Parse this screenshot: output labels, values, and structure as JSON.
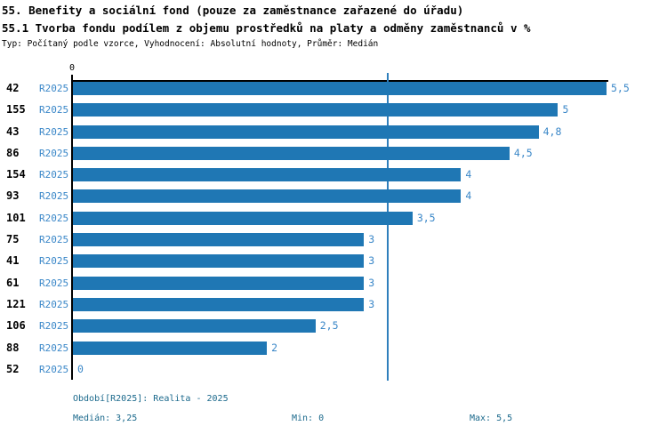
{
  "header": {
    "title_line1": "55. Benefity a sociální fond (pouze za zaměstnance zařazené do úřadu)",
    "title_line2": "55.1 Tvorba fondu podílem z objemu prostředků na platy a odměny zaměstnanců v %",
    "meta": "Typ: Počítaný podle vzorce, Vyhodnocení: Absolutní hodnoty, Průměr: Medián"
  },
  "chart_data": {
    "type": "bar",
    "orientation": "horizontal",
    "title": "55.1 Tvorba fondu podílem z objemu prostředků na platy a odměny zaměstnanců v %",
    "categories": [
      "42",
      "155",
      "43",
      "86",
      "154",
      "93",
      "101",
      "75",
      "41",
      "61",
      "121",
      "106",
      "88",
      "52"
    ],
    "series": [
      {
        "name": "R2025",
        "values": [
          5.5,
          5,
          4.8,
          4.5,
          4,
          4,
          3.5,
          3,
          3,
          3,
          3,
          2.5,
          2,
          0
        ],
        "value_labels": [
          "5,5",
          "5",
          "4,8",
          "4,5",
          "4",
          "4",
          "3,5",
          "3",
          "3",
          "3",
          "3",
          "2,5",
          "2",
          "0"
        ]
      }
    ],
    "xlim": [
      0,
      5.5
    ],
    "x_tick_labels": [
      "0"
    ],
    "median": 3.25,
    "median_label": "3,25",
    "grid": "off",
    "reference_line": "median",
    "legend_position": "none",
    "colors": {
      "bar": "#1f77b4",
      "median_line": "#2f7fbc",
      "value_label": "#3a87c8",
      "series_label": "#3a87c8",
      "axis": "#000000",
      "footer_text": "#1b698c"
    }
  },
  "footer": {
    "period": "Období[R2025]: Realita - 2025",
    "median": "Medián: 3,25",
    "min": "Min: 0",
    "max": "Max: 5,5"
  }
}
